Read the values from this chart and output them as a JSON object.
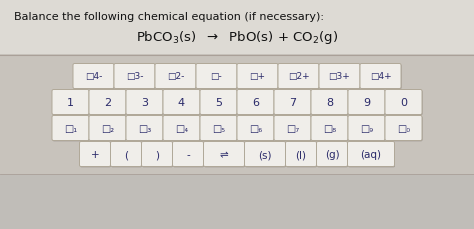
{
  "title_line1": "Balance the following chemical equation (if necessary):",
  "fig_bg": "#c8c3bc",
  "panel_bg": "#d4cfc8",
  "button_face": "#f0eeea",
  "button_edge": "#b0a898",
  "text_color": "#111111",
  "btn_text_color": "#2a2a6a",
  "row1_labels": [
    "□4-",
    "□3-",
    "□2-",
    "□-",
    "□+",
    "□2+",
    "□3+",
    "□4+"
  ],
  "row2_labels": [
    "1",
    "2",
    "3",
    "4",
    "5",
    "6",
    "7",
    "8",
    "9",
    "0"
  ],
  "row3_labels": [
    "□₁",
    "□₂",
    "□₃",
    "□₄",
    "□₅",
    "□₆",
    "□₇",
    "□₈",
    "□₉",
    "□₀"
  ],
  "row4_labels": [
    "+",
    "(",
    ")",
    "-",
    "⇌",
    "(s)",
    "(l)",
    "(g)",
    "(aq)"
  ]
}
